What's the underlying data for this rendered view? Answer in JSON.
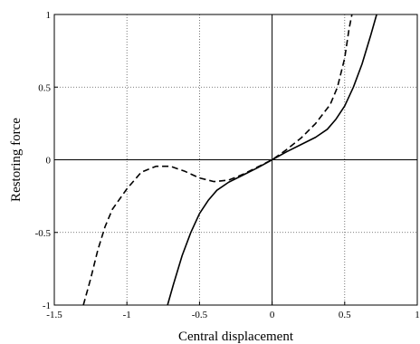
{
  "chart_data": {
    "type": "line",
    "title": "",
    "xlabel": "Central displacement",
    "ylabel": "Restoring force",
    "xlim": [
      -1.5,
      1
    ],
    "ylim": [
      -1,
      1
    ],
    "xticks": [
      -1.5,
      -1,
      -0.5,
      0,
      0.5,
      1
    ],
    "xtick_labels": [
      "-1.5",
      "-1",
      "-0.5",
      "0",
      "0.5",
      "1"
    ],
    "yticks": [
      -1,
      -0.5,
      0,
      0.5,
      1
    ],
    "ytick_labels": [
      "-1",
      "-0.5",
      "0",
      "0.5",
      "1"
    ],
    "grid": true,
    "legend": false,
    "series": [
      {
        "style": "solid",
        "color": "#000000",
        "points": [
          [
            -0.72,
            -1.0
          ],
          [
            -0.68,
            -0.86
          ],
          [
            -0.62,
            -0.66
          ],
          [
            -0.56,
            -0.5
          ],
          [
            -0.5,
            -0.37
          ],
          [
            -0.44,
            -0.28
          ],
          [
            -0.38,
            -0.21
          ],
          [
            -0.3,
            -0.155
          ],
          [
            -0.2,
            -0.105
          ],
          [
            -0.1,
            -0.055
          ],
          [
            0.0,
            0.0
          ],
          [
            0.1,
            0.055
          ],
          [
            0.2,
            0.105
          ],
          [
            0.3,
            0.155
          ],
          [
            0.38,
            0.21
          ],
          [
            0.44,
            0.28
          ],
          [
            0.5,
            0.37
          ],
          [
            0.56,
            0.5
          ],
          [
            0.62,
            0.66
          ],
          [
            0.68,
            0.86
          ],
          [
            0.72,
            1.0
          ]
        ]
      },
      {
        "style": "dashed",
        "color": "#000000",
        "points": [
          [
            -1.3,
            -1.0
          ],
          [
            -1.25,
            -0.82
          ],
          [
            -1.2,
            -0.62
          ],
          [
            -1.15,
            -0.46
          ],
          [
            -1.1,
            -0.34
          ],
          [
            -1.0,
            -0.2
          ],
          [
            -0.9,
            -0.085
          ],
          [
            -0.8,
            -0.045
          ],
          [
            -0.7,
            -0.045
          ],
          [
            -0.6,
            -0.08
          ],
          [
            -0.5,
            -0.125
          ],
          [
            -0.4,
            -0.15
          ],
          [
            -0.3,
            -0.14
          ],
          [
            -0.2,
            -0.1
          ],
          [
            -0.1,
            -0.05
          ],
          [
            0.0,
            0.0
          ],
          [
            0.1,
            0.07
          ],
          [
            0.2,
            0.15
          ],
          [
            0.3,
            0.25
          ],
          [
            0.4,
            0.38
          ],
          [
            0.45,
            0.5
          ],
          [
            0.5,
            0.7
          ],
          [
            0.53,
            0.9
          ],
          [
            0.55,
            1.0
          ]
        ]
      }
    ]
  }
}
